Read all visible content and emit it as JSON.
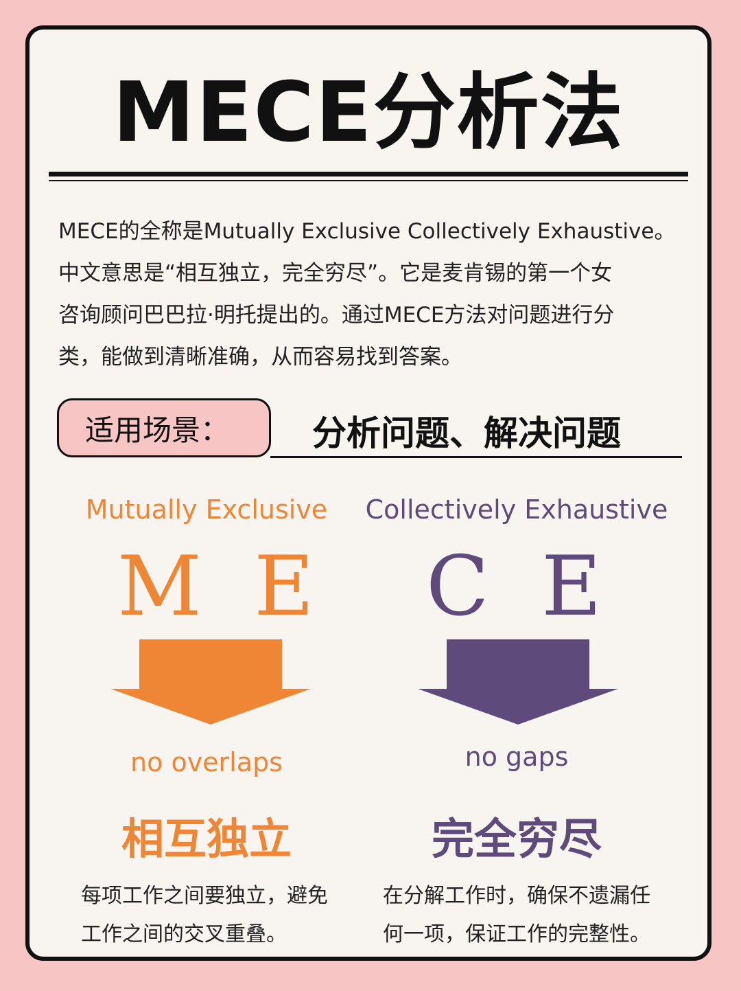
{
  "title": "MECE分析法",
  "intro": [
    "MECE的全称是Mutually Exclusive Collectively Exhaustive。",
    "中文意思是“相互独立，完全穷尽”。它是麦肯锡的第一个女",
    "咨询顾问巴巴拉·明托提出的。通过MECE方法对问题进行分",
    "类，能做到清晰准确，从而容易找到答案。"
  ],
  "scene": {
    "label": "适用场景：",
    "value": "分析问题、解决问题"
  },
  "left": {
    "heading": "Mutually Exclusive",
    "letters": "M  E",
    "tag": "no overlaps",
    "cn_title": "相互独立",
    "desc": [
      "每项工作之间要独立，避免",
      "工作之间的交叉重叠。"
    ],
    "color": "#ef8636"
  },
  "right": {
    "heading": "Collectively Exhaustive",
    "letters": "C  E",
    "tag": "no gaps",
    "cn_title": "完全穷尽",
    "desc": [
      "在分解工作时，确保不遗漏任",
      "何一项，保证工作的完整性。"
    ],
    "color": "#5f4a7c"
  },
  "colors": {
    "background": "#f7c6c4",
    "card": "#f8f4f0",
    "orange": "#ef8636",
    "purple": "#5f4a7c"
  },
  "icons": {
    "left_arrow": "down-arrow-icon",
    "right_arrow": "down-arrow-icon"
  }
}
